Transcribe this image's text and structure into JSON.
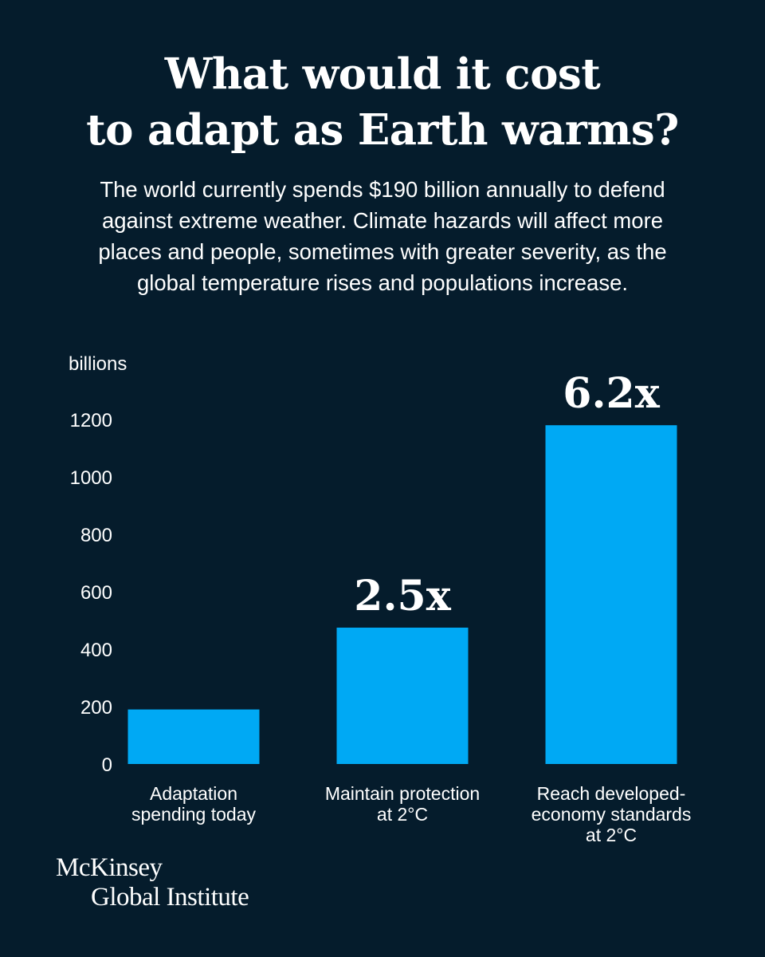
{
  "header": {
    "title_lines": [
      "What would it cost",
      "to adapt as Earth warms?"
    ],
    "subtitle_lines": [
      "The world currently spends $190 billion annually to defend",
      "against extreme weather. Climate hazards will affect more",
      "places and people, sometimes with greater severity, as the",
      "global temperature rises and populations increase."
    ]
  },
  "chart_data": {
    "type": "bar",
    "title": "What would it cost to adapt as Earth warms?",
    "ylabel": "billions",
    "xlabel": "",
    "ylim": [
      0,
      1200
    ],
    "yticks": [
      0,
      200,
      400,
      600,
      800,
      1000,
      1200
    ],
    "grid": false,
    "categories": [
      [
        "Adaptation",
        "spending today"
      ],
      [
        "Maintain protection",
        "at 2°C"
      ],
      [
        "Reach developed-",
        "economy standards",
        "at 2°C"
      ]
    ],
    "values": [
      190,
      475,
      1180
    ],
    "annotations": [
      "",
      "2.5x",
      "6.2x"
    ],
    "color": "#00a9f4"
  },
  "footer": {
    "logo_line1": "McKinsey",
    "logo_line2": "Global Institute"
  }
}
